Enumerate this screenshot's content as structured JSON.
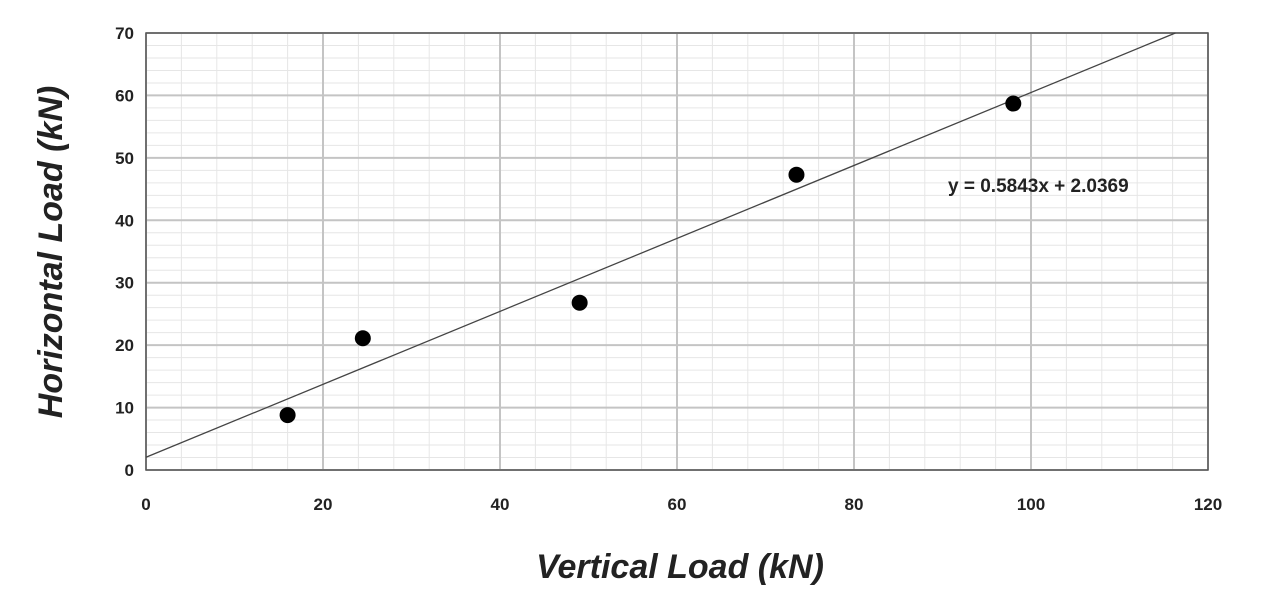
{
  "chart_data": {
    "type": "scatter",
    "title": "",
    "xlabel": "Vertical Load (kN)",
    "ylabel": "Horizontal Load (kN)",
    "xlim": [
      0,
      120
    ],
    "ylim": [
      0,
      70
    ],
    "x_ticks": [
      0,
      20,
      40,
      60,
      80,
      100,
      120
    ],
    "y_ticks": [
      0,
      10,
      20,
      30,
      40,
      50,
      60,
      70
    ],
    "x_minor_step": 4,
    "y_minor_step": 2,
    "grid": true,
    "legend": "none",
    "series": [
      {
        "x": [
          16,
          24.5,
          49,
          73.5,
          98
        ],
        "y": [
          8.8,
          21.1,
          26.8,
          47.3,
          58.7
        ],
        "marker_color": "#000000"
      }
    ],
    "trendline": {
      "type": "linear",
      "slope": 0.5843,
      "intercept": 2.0369,
      "equation_label": "y = 0.5843x + 2.0369",
      "color": "#444444"
    }
  }
}
